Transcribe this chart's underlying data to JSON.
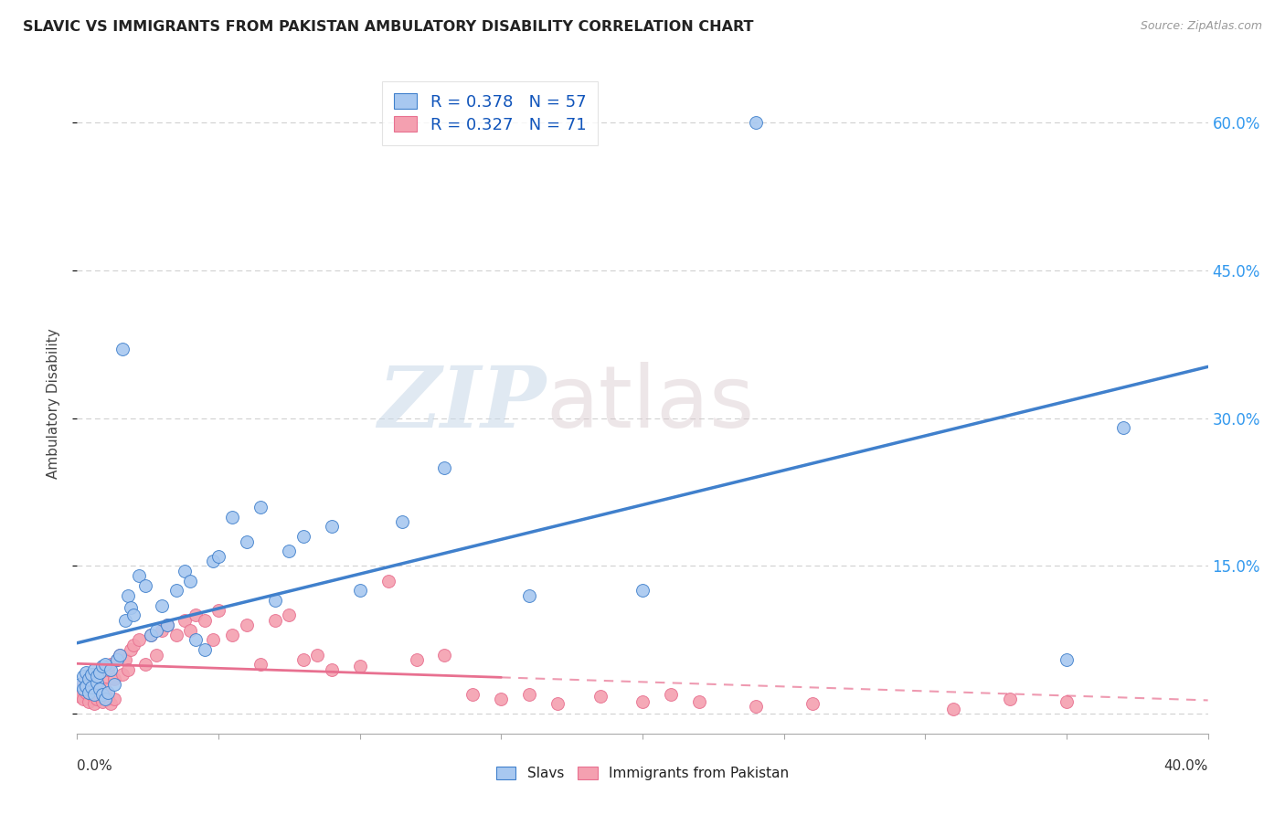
{
  "title": "SLAVIC VS IMMIGRANTS FROM PAKISTAN AMBULATORY DISABILITY CORRELATION CHART",
  "source": "Source: ZipAtlas.com",
  "ylabel": "Ambulatory Disability",
  "xlim": [
    0.0,
    0.4
  ],
  "ylim": [
    -0.02,
    0.65
  ],
  "yticks": [
    0.0,
    0.15,
    0.3,
    0.45,
    0.6
  ],
  "ytick_labels": [
    "",
    "15.0%",
    "30.0%",
    "45.0%",
    "60.0%"
  ],
  "xticks": [
    0.0,
    0.05,
    0.1,
    0.15,
    0.2,
    0.25,
    0.3,
    0.35,
    0.4
  ],
  "slavs_R": 0.378,
  "slavs_N": 57,
  "pakistan_R": 0.327,
  "pakistan_N": 71,
  "slavs_color": "#a8c8f0",
  "pakistan_color": "#f4a0b0",
  "slavs_line_color": "#4080cc",
  "pakistan_line_color": "#e87090",
  "background_color": "#ffffff",
  "watermark_zip": "ZIP",
  "watermark_atlas": "atlas",
  "slavs_x": [
    0.001,
    0.002,
    0.002,
    0.003,
    0.003,
    0.004,
    0.004,
    0.005,
    0.005,
    0.006,
    0.006,
    0.007,
    0.007,
    0.008,
    0.008,
    0.009,
    0.009,
    0.01,
    0.01,
    0.011,
    0.012,
    0.013,
    0.014,
    0.015,
    0.016,
    0.017,
    0.018,
    0.019,
    0.02,
    0.022,
    0.024,
    0.026,
    0.028,
    0.03,
    0.032,
    0.035,
    0.038,
    0.04,
    0.042,
    0.045,
    0.048,
    0.05,
    0.055,
    0.06,
    0.065,
    0.07,
    0.075,
    0.08,
    0.09,
    0.1,
    0.115,
    0.13,
    0.16,
    0.2,
    0.24,
    0.35,
    0.37
  ],
  "slavs_y": [
    0.03,
    0.038,
    0.025,
    0.042,
    0.028,
    0.035,
    0.022,
    0.04,
    0.027,
    0.045,
    0.02,
    0.032,
    0.038,
    0.025,
    0.042,
    0.02,
    0.048,
    0.015,
    0.05,
    0.022,
    0.045,
    0.03,
    0.055,
    0.06,
    0.37,
    0.095,
    0.12,
    0.108,
    0.1,
    0.14,
    0.13,
    0.08,
    0.085,
    0.11,
    0.09,
    0.125,
    0.145,
    0.135,
    0.075,
    0.065,
    0.155,
    0.16,
    0.2,
    0.175,
    0.21,
    0.115,
    0.165,
    0.18,
    0.19,
    0.125,
    0.195,
    0.25,
    0.12,
    0.125,
    0.6,
    0.055,
    0.29
  ],
  "pakistan_x": [
    0.001,
    0.001,
    0.002,
    0.002,
    0.003,
    0.003,
    0.004,
    0.004,
    0.005,
    0.005,
    0.006,
    0.006,
    0.007,
    0.007,
    0.008,
    0.008,
    0.009,
    0.009,
    0.01,
    0.01,
    0.011,
    0.011,
    0.012,
    0.012,
    0.013,
    0.013,
    0.014,
    0.015,
    0.016,
    0.017,
    0.018,
    0.019,
    0.02,
    0.022,
    0.024,
    0.026,
    0.028,
    0.03,
    0.032,
    0.035,
    0.038,
    0.04,
    0.042,
    0.045,
    0.048,
    0.05,
    0.055,
    0.06,
    0.065,
    0.07,
    0.075,
    0.08,
    0.085,
    0.09,
    0.1,
    0.11,
    0.12,
    0.13,
    0.14,
    0.15,
    0.16,
    0.17,
    0.185,
    0.2,
    0.21,
    0.22,
    0.24,
    0.26,
    0.31,
    0.33,
    0.35
  ],
  "pakistan_y": [
    0.025,
    0.018,
    0.03,
    0.015,
    0.022,
    0.035,
    0.012,
    0.028,
    0.02,
    0.04,
    0.01,
    0.032,
    0.015,
    0.038,
    0.018,
    0.042,
    0.012,
    0.035,
    0.02,
    0.025,
    0.015,
    0.045,
    0.01,
    0.05,
    0.015,
    0.035,
    0.055,
    0.06,
    0.04,
    0.055,
    0.045,
    0.065,
    0.07,
    0.075,
    0.05,
    0.08,
    0.06,
    0.085,
    0.09,
    0.08,
    0.095,
    0.085,
    0.1,
    0.095,
    0.075,
    0.105,
    0.08,
    0.09,
    0.05,
    0.095,
    0.1,
    0.055,
    0.06,
    0.045,
    0.048,
    0.135,
    0.055,
    0.06,
    0.02,
    0.015,
    0.02,
    0.01,
    0.018,
    0.012,
    0.02,
    0.012,
    0.008,
    0.01,
    0.005,
    0.015,
    0.012
  ]
}
